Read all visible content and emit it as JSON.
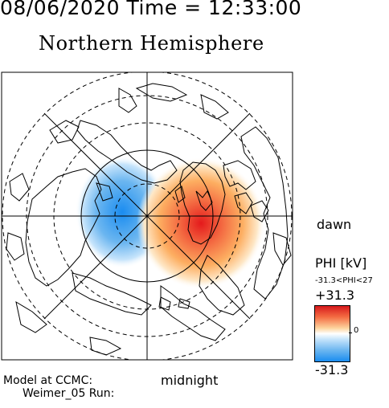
{
  "header": {
    "datetime": "08/06/2020 Time = 12:33:00",
    "hemisphere": "Northern Hemisphere"
  },
  "map": {
    "dawn_label": "dawn",
    "midnight_label": "midnight",
    "potential_cells": [
      {
        "sign": "negative",
        "color": "#1a8cf0"
      },
      {
        "sign": "positive",
        "color": "#e41a1c"
      }
    ]
  },
  "legend": {
    "name": "PHI [kV]",
    "range": "-31.3<PHI<27",
    "max": "+31.3",
    "mid": "0",
    "min": "-31.3"
  },
  "footer": {
    "line1": "Model at CCMC:",
    "line2": "Weimer_05 Run:"
  }
}
